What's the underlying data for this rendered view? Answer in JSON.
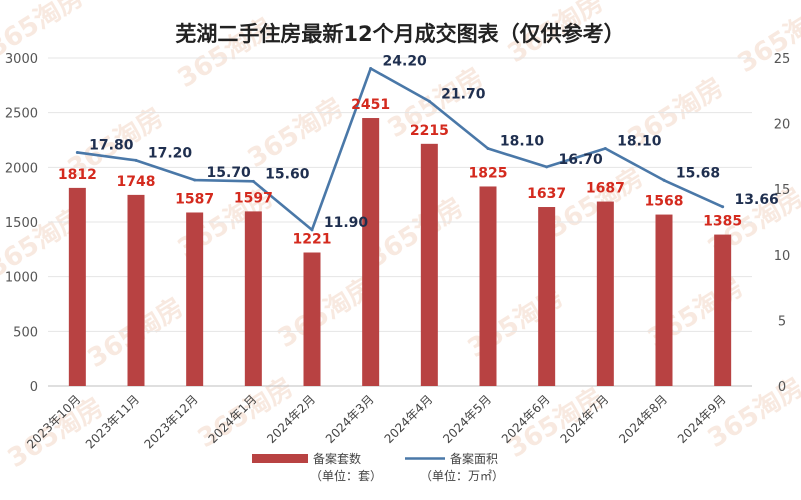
{
  "watermark": "365淘房",
  "chart_data": {
    "type": "bar",
    "title": "芜湖二手住房最新12个月成交图表（仅供参考）",
    "categories": [
      "2023年10月",
      "2023年11月",
      "2023年12月",
      "2024年1月",
      "2024年2月",
      "2024年3月",
      "2024年4月",
      "2024年5月",
      "2024年6月",
      "2024年7月",
      "2024年8月",
      "2024年9月"
    ],
    "y_left": {
      "min": 0,
      "max": 3000,
      "ticks": [
        "0",
        "500",
        "1000",
        "1500",
        "2000",
        "2500",
        "3000"
      ]
    },
    "y_right": {
      "min": 0,
      "max": 25,
      "ticks": [
        "0",
        "5",
        "10",
        "15",
        "20",
        "25"
      ]
    },
    "grid": true,
    "legend_position": "bottom",
    "series": [
      {
        "name": "备案套数",
        "unit_label": "（单位：套）",
        "type": "bar",
        "axis": "left",
        "color": "#b84242",
        "label_color": "#d42a1e",
        "values": [
          1812,
          1748,
          1587,
          1597,
          1221,
          2451,
          2215,
          1825,
          1637,
          1687,
          1568,
          1385
        ],
        "labels": [
          "1812",
          "1748",
          "1587",
          "1597",
          "1221",
          "2451",
          "2215",
          "1825",
          "1637",
          "1687",
          "1568",
          "1385"
        ]
      },
      {
        "name": "备案面积",
        "unit_label": "（单位：万㎡）",
        "type": "line",
        "axis": "right",
        "color": "#4a78a8",
        "label_color": "#1f2f4f",
        "values": [
          17.8,
          17.2,
          15.7,
          15.6,
          11.9,
          24.2,
          21.7,
          18.1,
          16.7,
          18.1,
          15.68,
          13.66
        ],
        "labels": [
          "17.80",
          "17.20",
          "15.70",
          "15.60",
          "11.90",
          "24.20",
          "21.70",
          "18.10",
          "16.70",
          "18.10",
          "15.68",
          "13.66"
        ]
      }
    ]
  }
}
